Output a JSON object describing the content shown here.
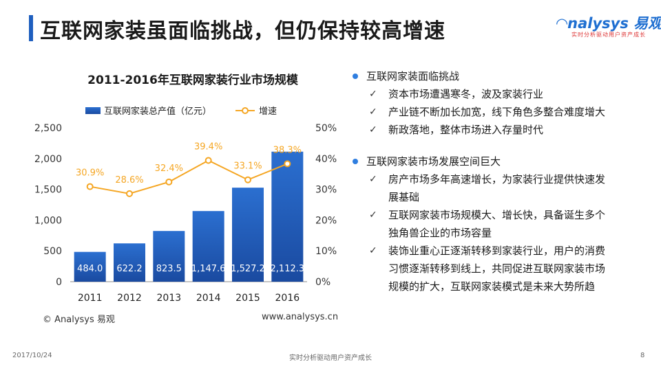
{
  "header": {
    "title": "互联网家装虽面临挑战，但仍保持较高增速",
    "logo_text": "nalysys",
    "logo_cn": "易观",
    "logo_sub": "实时分析驱动用户资产成长"
  },
  "chart_data": {
    "type": "bar",
    "title": "2011-2016年互联网家装行业市场规模",
    "categories": [
      "2011",
      "2012",
      "2013",
      "2014",
      "2015",
      "2016"
    ],
    "series": [
      {
        "name": "互联网家装总产值（亿元）",
        "type": "bar",
        "values": [
          484.0,
          622.2,
          823.5,
          1147.6,
          1527.2,
          2112.3
        ],
        "labels": [
          "484.0",
          "622.2",
          "823.5",
          "1,147.6",
          "1,527.2",
          "2,112.3"
        ],
        "color": "#1f5fbf",
        "axis": "left"
      },
      {
        "name": "增速",
        "type": "line",
        "values": [
          30.9,
          28.6,
          32.4,
          39.4,
          33.1,
          38.3
        ],
        "labels": [
          "30.9%",
          "28.6%",
          "32.4%",
          "39.4%",
          "33.1%",
          "38.3%"
        ],
        "color": "#f5a623",
        "axis": "right"
      }
    ],
    "y_left": {
      "min": 0,
      "max": 2500,
      "ticks": [
        "0",
        "500",
        "1,000",
        "1,500",
        "2,000",
        "2,500"
      ]
    },
    "y_right": {
      "min": 0,
      "max": 50,
      "ticks": [
        "0%",
        "10%",
        "20%",
        "30%",
        "40%",
        "50%"
      ]
    },
    "legend_position": "top",
    "grid": false
  },
  "source": {
    "left": "© Analysys 易观",
    "right": "www.analysys.cn"
  },
  "bullets": [
    {
      "heading": "互联网家装面临挑战",
      "items": [
        [
          "资本市场遭遇寒冬，波及家装行业"
        ],
        [
          "产业链不断加长加宽，线下角色多整合难度增大"
        ],
        [
          "新政落地，整体市场进入存量时代"
        ]
      ]
    },
    {
      "heading": "互联网家装市场发展空间巨大",
      "items": [
        [
          "房产市场多年高速增长，为家装行业提供快速发",
          "展基础"
        ],
        [
          "互联网家装市场规模大、增长快，具备诞生多个",
          "独角兽企业的市场容量"
        ],
        [
          "装饰业重心正逐渐转移到家装行业，用户的消费",
          "习惯逐渐转移到线上，共同促进互联网家装市场",
          "规模的扩大，互联网家装模式是未来大势所趋"
        ]
      ]
    }
  ],
  "footer": {
    "date": "2017/10/24",
    "center": "实时分析驱动用户资产成长",
    "page": "8"
  },
  "colors": {
    "accent": "#1f5fbf",
    "line": "#f5a623",
    "bullet_dot": "#2f7ee0"
  }
}
